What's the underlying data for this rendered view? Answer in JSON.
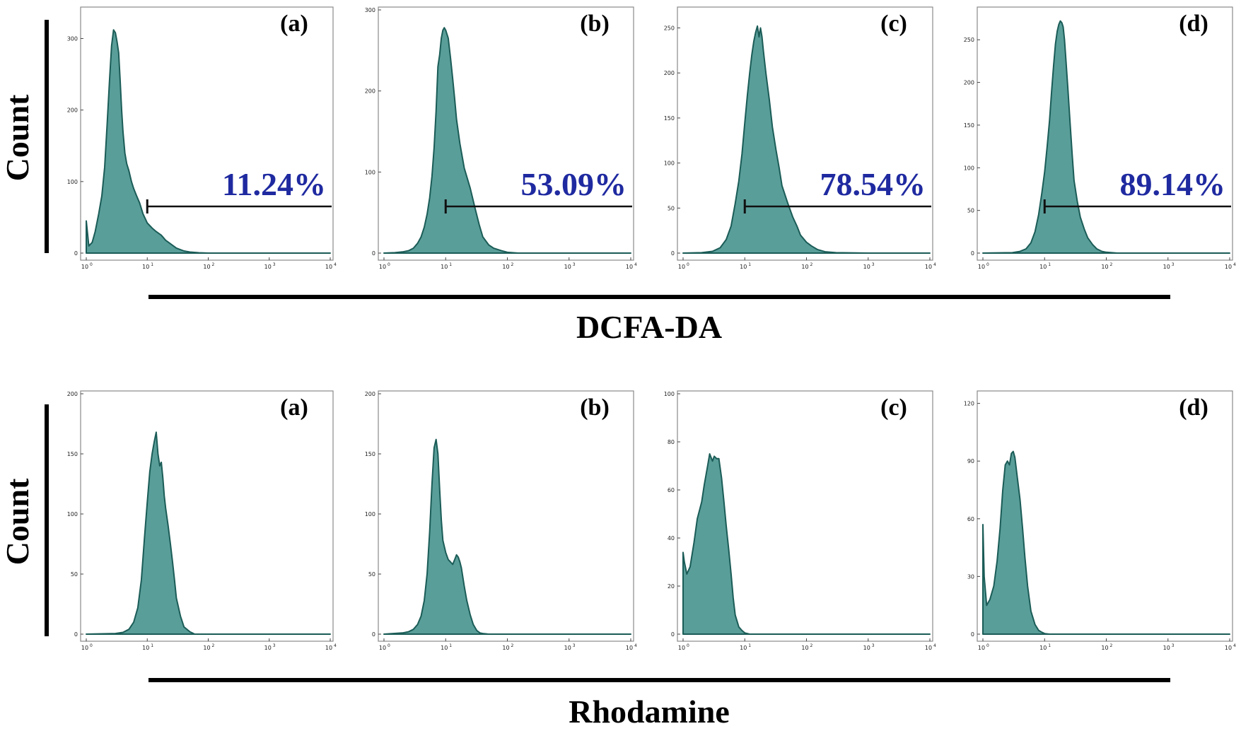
{
  "chart_data": [
    {
      "type": "area",
      "group": "DCFA-DA",
      "panel_label": "(a)",
      "xlabel": "DCFA-DA",
      "ylabel": "Count",
      "x_scale": "log",
      "xlim": [
        1,
        10000
      ],
      "x_ticks": [
        "10",
        "10",
        "10",
        "10",
        "10"
      ],
      "x_tick_exponents": [
        "0",
        "1",
        "2",
        "3",
        "4"
      ],
      "ylim": [
        0,
        340
      ],
      "y_ticks": [
        "0",
        "100",
        "200",
        "300"
      ],
      "gate_percent": "11.24%",
      "gate_start": 10,
      "x": [
        1,
        1.1,
        1.25,
        1.4,
        1.6,
        1.8,
        2,
        2.2,
        2.4,
        2.6,
        2.8,
        3.0,
        3.2,
        3.4,
        3.6,
        3.8,
        4.0,
        4.3,
        4.6,
        5,
        5.5,
        6,
        6.7,
        7.5,
        8.5,
        10,
        12,
        14,
        17,
        20,
        25,
        30,
        40,
        50,
        70,
        100,
        200,
        1000,
        10000
      ],
      "y": [
        45,
        10,
        15,
        30,
        55,
        80,
        120,
        180,
        240,
        290,
        312,
        308,
        295,
        280,
        240,
        200,
        170,
        140,
        125,
        115,
        100,
        90,
        80,
        70,
        55,
        42,
        35,
        30,
        25,
        18,
        12,
        7,
        3,
        1.5,
        0.5,
        0,
        0,
        0,
        0
      ]
    },
    {
      "type": "area",
      "group": "DCFA-DA",
      "panel_label": "(b)",
      "xlabel": "DCFA-DA",
      "ylabel": "Count",
      "x_scale": "log",
      "xlim": [
        1,
        10000
      ],
      "x_ticks": [
        "10",
        "10",
        "10",
        "10",
        "10"
      ],
      "x_tick_exponents": [
        "0",
        "1",
        "2",
        "3",
        "4"
      ],
      "ylim": [
        0,
        300
      ],
      "y_ticks": [
        "0",
        "100",
        "200",
        "300"
      ],
      "gate_percent": "53.09%",
      "gate_start": 10,
      "x": [
        1,
        1.5,
        2,
        2.5,
        3,
        3.5,
        4,
        4.5,
        5,
        5.5,
        6,
        6.5,
        7,
        7.5,
        8,
        8.5,
        9,
        9.5,
        10,
        11,
        12,
        13,
        14,
        15,
        17,
        20,
        25,
        30,
        35,
        40,
        50,
        60,
        80,
        100,
        150,
        1000,
        10000
      ],
      "y": [
        0,
        0.5,
        1.5,
        3,
        6,
        12,
        20,
        32,
        48,
        68,
        95,
        130,
        175,
        230,
        245,
        265,
        275,
        278,
        275,
        265,
        240,
        215,
        190,
        165,
        135,
        105,
        80,
        55,
        35,
        20,
        10,
        6,
        3,
        1,
        0,
        0,
        0
      ]
    },
    {
      "type": "area",
      "group": "DCFA-DA",
      "panel_label": "(c)",
      "xlabel": "DCFA-DA",
      "ylabel": "Count",
      "x_scale": "log",
      "xlim": [
        1,
        10000
      ],
      "x_ticks": [
        "10",
        "10",
        "10",
        "10",
        "10"
      ],
      "x_tick_exponents": [
        "0",
        "1",
        "2",
        "3",
        "4"
      ],
      "ylim": [
        0,
        270
      ],
      "y_ticks": [
        "0",
        "50",
        "100",
        "150",
        "200",
        "250"
      ],
      "gate_percent": "78.54%",
      "gate_start": 10,
      "x": [
        1,
        2,
        3,
        4,
        5,
        6,
        7,
        8,
        9,
        10,
        11,
        12,
        13,
        14,
        15,
        16,
        17,
        18,
        19,
        20,
        22,
        25,
        28,
        32,
        36,
        40,
        50,
        60,
        70,
        80,
        100,
        120,
        150,
        200,
        300,
        1000,
        10000
      ],
      "y": [
        0,
        0.5,
        2,
        6,
        15,
        30,
        55,
        80,
        110,
        145,
        175,
        200,
        220,
        235,
        245,
        252,
        240,
        250,
        240,
        225,
        200,
        170,
        140,
        115,
        95,
        75,
        55,
        40,
        30,
        20,
        12,
        8,
        4,
        1.5,
        0.5,
        0,
        0
      ]
    },
    {
      "type": "area",
      "group": "DCFA-DA",
      "panel_label": "(d)",
      "xlabel": "DCFA-DA",
      "ylabel": "Count",
      "x_scale": "log",
      "xlim": [
        1,
        10000
      ],
      "x_ticks": [
        "10",
        "10",
        "10",
        "10",
        "10"
      ],
      "x_tick_exponents": [
        "0",
        "1",
        "2",
        "3",
        "4"
      ],
      "ylim": [
        0,
        285
      ],
      "y_ticks": [
        "0",
        "50",
        "100",
        "150",
        "200",
        "250"
      ],
      "gate_percent": "89.14%",
      "gate_start": 10,
      "x": [
        1,
        3,
        4,
        5,
        6,
        7,
        8,
        9,
        10,
        11,
        12,
        13,
        14,
        15,
        16,
        17,
        18,
        19,
        20,
        21,
        22,
        24,
        26,
        28,
        30,
        34,
        38,
        44,
        50,
        60,
        70,
        85,
        100,
        150,
        1000,
        10000
      ],
      "y": [
        0,
        0.5,
        2,
        5,
        12,
        25,
        45,
        70,
        95,
        125,
        155,
        190,
        220,
        245,
        260,
        268,
        272,
        270,
        265,
        250,
        230,
        190,
        150,
        115,
        85,
        60,
        42,
        28,
        18,
        10,
        5,
        2,
        1,
        0,
        0,
        0
      ]
    },
    {
      "type": "area",
      "group": "Rhodamine",
      "panel_label": "(a)",
      "xlabel": "Rhodamine",
      "ylabel": "Count",
      "x_scale": "log",
      "xlim": [
        1,
        10000
      ],
      "x_ticks": [
        "10",
        "10",
        "10",
        "10",
        "10"
      ],
      "x_tick_exponents": [
        "0",
        "1",
        "2",
        "3",
        "4"
      ],
      "ylim": [
        0,
        200
      ],
      "y_ticks": [
        "0",
        "50",
        "100",
        "150",
        "200"
      ],
      "x": [
        1,
        3,
        4,
        5,
        6,
        7,
        8,
        9,
        10,
        11,
        12,
        13,
        14,
        15,
        16,
        17,
        18,
        19,
        20,
        22,
        24,
        26,
        28,
        30,
        35,
        40,
        50,
        60,
        1000,
        10000
      ],
      "y": [
        0,
        0.5,
        1.5,
        4,
        10,
        22,
        45,
        80,
        110,
        135,
        150,
        160,
        168,
        150,
        140,
        143,
        130,
        115,
        105,
        90,
        75,
        60,
        45,
        30,
        15,
        6,
        2,
        0,
        0,
        0
      ]
    },
    {
      "type": "area",
      "group": "Rhodamine",
      "panel_label": "(b)",
      "xlabel": "Rhodamine",
      "ylabel": "Count",
      "x_scale": "log",
      "xlim": [
        1,
        10000
      ],
      "x_ticks": [
        "10",
        "10",
        "10",
        "10",
        "10"
      ],
      "x_tick_exponents": [
        "0",
        "1",
        "2",
        "3",
        "4"
      ],
      "ylim": [
        0,
        200
      ],
      "y_ticks": [
        "0",
        "50",
        "100",
        "150",
        "200"
      ],
      "x": [
        1,
        2,
        2.5,
        3,
        3.5,
        4,
        4.5,
        5,
        5.5,
        6,
        6.5,
        7,
        7.5,
        8,
        8.5,
        9,
        10,
        11,
        12,
        13,
        14,
        15,
        16,
        17,
        18,
        20,
        22,
        25,
        28,
        32,
        36,
        40,
        50,
        1000,
        10000
      ],
      "y": [
        0,
        1,
        2,
        4,
        8,
        15,
        28,
        50,
        85,
        125,
        155,
        162,
        150,
        120,
        95,
        78,
        68,
        62,
        60,
        58,
        62,
        66,
        64,
        60,
        55,
        40,
        28,
        16,
        8,
        3,
        1,
        0.5,
        0,
        0,
        0
      ]
    },
    {
      "type": "area",
      "group": "Rhodamine",
      "panel_label": "(c)",
      "xlabel": "Rhodamine",
      "ylabel": "Count",
      "x_scale": "log",
      "xlim": [
        1,
        10000
      ],
      "x_ticks": [
        "10",
        "10",
        "10",
        "10",
        "10"
      ],
      "x_tick_exponents": [
        "0",
        "1",
        "2",
        "3",
        "4"
      ],
      "ylim": [
        0,
        100
      ],
      "y_ticks": [
        "0",
        "20",
        "40",
        "60",
        "80",
        "100"
      ],
      "x": [
        1,
        1.05,
        1.15,
        1.3,
        1.5,
        1.7,
        2,
        2.2,
        2.5,
        2.7,
        3.0,
        3.2,
        3.5,
        3.8,
        4.2,
        4.6,
        5.0,
        5.5,
        6,
        6.5,
        7,
        8,
        9,
        10,
        12,
        15,
        1000,
        10000
      ],
      "y": [
        34,
        30,
        25,
        28,
        38,
        48,
        55,
        62,
        70,
        75,
        72,
        74,
        73,
        73,
        65,
        55,
        45,
        35,
        25,
        15,
        8,
        3,
        1.5,
        0.5,
        0,
        0,
        0,
        0
      ]
    },
    {
      "type": "area",
      "group": "Rhodamine",
      "panel_label": "(d)",
      "xlabel": "Rhodamine",
      "ylabel": "Count",
      "x_scale": "log",
      "xlim": [
        1,
        10000
      ],
      "x_ticks": [
        "10",
        "10",
        "10",
        "10",
        "10"
      ],
      "x_tick_exponents": [
        "0",
        "1",
        "2",
        "3",
        "4"
      ],
      "ylim": [
        0,
        125
      ],
      "y_ticks": [
        "0",
        "30",
        "60",
        "90",
        "120"
      ],
      "x": [
        1,
        1.05,
        1.15,
        1.3,
        1.5,
        1.7,
        1.9,
        2.1,
        2.3,
        2.5,
        2.7,
        2.9,
        3.1,
        3.3,
        3.6,
        4.0,
        4.4,
        4.8,
        5.3,
        6,
        7,
        8,
        9,
        10,
        12,
        1000,
        10000
      ],
      "y": [
        57,
        30,
        15,
        18,
        25,
        38,
        55,
        75,
        88,
        90,
        88,
        94,
        95,
        92,
        82,
        70,
        55,
        40,
        25,
        12,
        5,
        2,
        1,
        0.3,
        0,
        0,
        0
      ]
    }
  ],
  "group_labels": {
    "top": "DCFA-DA",
    "bottom": "Rhodamine"
  },
  "axis_labels": {
    "top_y": "Count",
    "bottom_y": "Count"
  },
  "colors": {
    "fill": "#5a9e9a",
    "stroke": "#1b5c57",
    "percent_text": "#1f2aa0",
    "axes": "#000000"
  }
}
